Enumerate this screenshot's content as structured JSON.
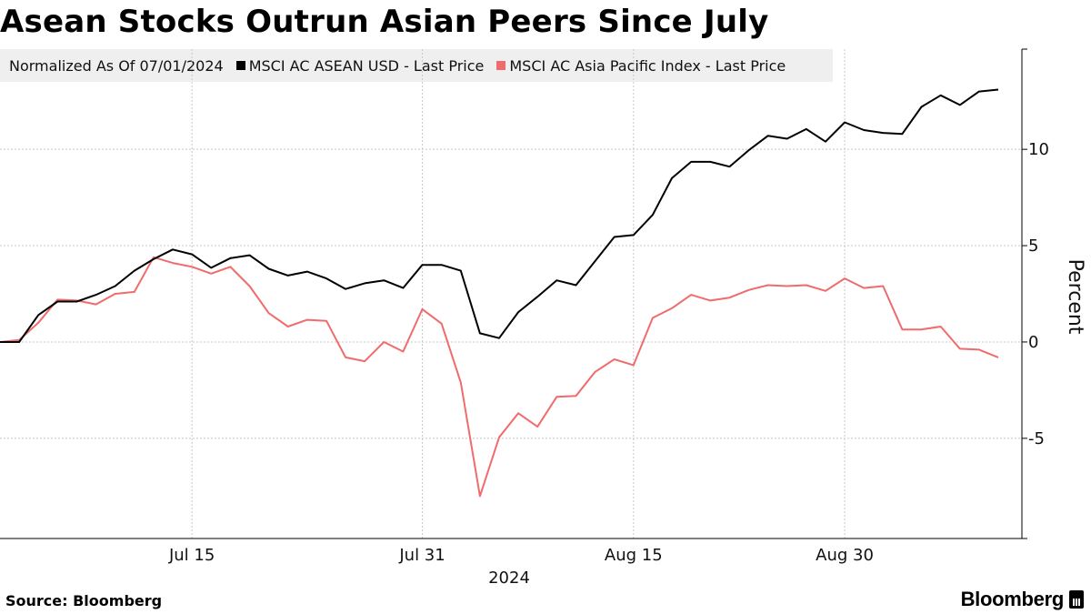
{
  "title": "Asean Stocks Outrun Asian Peers Since July",
  "legend": {
    "note": "Normalized As Of 07/01/2024",
    "items": [
      {
        "label": "MSCI AC ASEAN USD - Last Price",
        "color": "#000000"
      },
      {
        "label": "MSCI AC Asia Pacific Index - Last Price",
        "color": "#f06b6b"
      }
    ]
  },
  "source": "Source: Bloomberg",
  "brand": "Bloomberg",
  "chart_data": {
    "type": "line",
    "title": "Asean Stocks Outrun Asian Peers Since July",
    "xlabel": "2024",
    "ylabel": "Percent",
    "ylim": [
      -10.2,
      15.2
    ],
    "yticks": [
      -5,
      0,
      5,
      10
    ],
    "ytick_labels": [
      "-5",
      "0",
      "5",
      "10"
    ],
    "xticks": [
      {
        "index": 10,
        "label": "Jul 15"
      },
      {
        "index": 22,
        "label": "Jul 31"
      },
      {
        "index": 33,
        "label": "Aug 15"
      },
      {
        "index": 44,
        "label": "Aug 30"
      }
    ],
    "x_count": 53,
    "grid": true,
    "series": [
      {
        "name": "MSCI AC ASEAN USD - Last Price",
        "color": "#000000",
        "values": [
          0,
          0,
          1.4,
          2.1,
          2.1,
          2.45,
          2.9,
          3.7,
          4.3,
          4.8,
          4.55,
          3.85,
          4.35,
          4.5,
          3.8,
          3.45,
          3.65,
          3.3,
          2.75,
          3.05,
          3.2,
          2.8,
          4.0,
          4.0,
          3.7,
          0.45,
          0.2,
          1.55,
          2.35,
          3.2,
          2.95,
          4.2,
          5.45,
          5.55,
          6.6,
          8.5,
          9.35,
          9.35,
          9.1,
          9.95,
          10.7,
          10.55,
          11.05,
          10.4,
          11.4,
          11.0,
          10.85,
          10.8,
          12.2,
          12.8,
          12.3,
          13.0,
          13.1
        ]
      },
      {
        "name": "MSCI AC Asia Pacific Index - Last Price",
        "color": "#f06b6b",
        "values": [
          0,
          0.1,
          1.0,
          2.2,
          2.15,
          1.95,
          2.5,
          2.6,
          4.4,
          4.1,
          3.9,
          3.55,
          3.9,
          2.9,
          1.5,
          0.8,
          1.15,
          1.1,
          -0.8,
          -1.0,
          0.0,
          -0.5,
          1.7,
          0.95,
          -2.1,
          -8.0,
          -4.95,
          -3.7,
          -4.4,
          -2.85,
          -2.8,
          -1.55,
          -0.9,
          -1.2,
          1.25,
          1.75,
          2.45,
          2.15,
          2.3,
          2.7,
          2.95,
          2.9,
          2.95,
          2.65,
          3.3,
          2.8,
          2.9,
          0.65,
          0.65,
          0.8,
          -0.35,
          -0.4,
          -0.8
        ]
      }
    ]
  }
}
